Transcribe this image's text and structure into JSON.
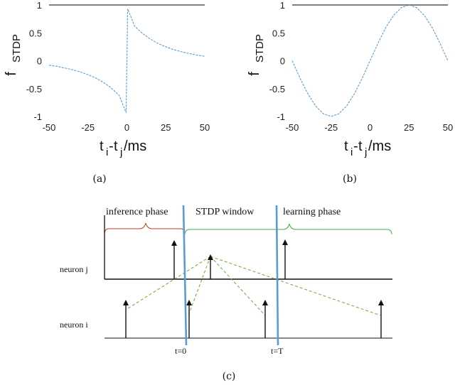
{
  "chart_data": [
    {
      "type": "line",
      "title": "",
      "ylabel": {
        "main": "f",
        "sub": "STDP"
      },
      "xlabel": {
        "a": "t",
        "a_sub": "i",
        "dash": "-",
        "b": "t",
        "b_sub": "j",
        "unit": " /ms"
      },
      "xlim": [
        -50,
        50
      ],
      "ylim": [
        -1,
        1
      ],
      "xticks": [
        "-50",
        "-25",
        "0",
        "25",
        "50"
      ],
      "yticks": [
        "1",
        "0.5",
        "0",
        "-0.5",
        "-1"
      ],
      "series": [
        {
          "color": "#5b9bd5",
          "x": [
            -50,
            -45,
            -40,
            -35,
            -30,
            -25,
            -20,
            -15,
            -10,
            -5,
            -0.5,
            0.5,
            5,
            10,
            15,
            20,
            25,
            30,
            35,
            40,
            45,
            50
          ],
          "y": [
            -0.08,
            -0.1,
            -0.13,
            -0.16,
            -0.2,
            -0.25,
            -0.31,
            -0.39,
            -0.49,
            -0.62,
            -0.93,
            0.93,
            0.62,
            0.49,
            0.39,
            0.31,
            0.25,
            0.2,
            0.16,
            0.13,
            0.1,
            0.08
          ]
        }
      ],
      "caption": "(a)"
    },
    {
      "type": "line",
      "title": "",
      "ylabel": {
        "main": "f",
        "sub": "STDP"
      },
      "xlabel": {
        "a": "t",
        "a_sub": "i",
        "dash": "-",
        "b": "t",
        "b_sub": "j",
        "unit": " /ms"
      },
      "xlim": [
        -50,
        50
      ],
      "ylim": [
        -1,
        1
      ],
      "xticks": [
        "-50",
        "-25",
        "0",
        "25",
        "50"
      ],
      "yticks": [
        "1",
        "0.5",
        "0",
        "-0.5",
        "-1"
      ],
      "series": [
        {
          "color": "#5b9bd5",
          "x": [
            -50,
            -45,
            -40,
            -35,
            -30,
            -25,
            -20,
            -15,
            -10,
            -5,
            0,
            5,
            10,
            15,
            20,
            25,
            30,
            35,
            40,
            45,
            50
          ],
          "y": [
            0,
            -0.31,
            -0.59,
            -0.81,
            -0.95,
            -1,
            -0.95,
            -0.81,
            -0.59,
            -0.31,
            0,
            0.31,
            0.59,
            0.81,
            0.95,
            1,
            0.95,
            0.81,
            0.59,
            0.31,
            0
          ]
        }
      ],
      "caption": "(b)"
    }
  ],
  "diagram": {
    "labels": {
      "inference": "inference phase",
      "stdp_window": "STDP window",
      "learning": "learning phase",
      "neuron_j": "neuron j",
      "neuron_i": "neuron i",
      "t0": "t=0",
      "tT": "t=T"
    },
    "caption": "(c)",
    "colors": {
      "inference_brace": "#c0392b",
      "learning_brace": "#3cb043",
      "window_lines": "#5b9bd5",
      "links": "#6aab2e"
    }
  }
}
